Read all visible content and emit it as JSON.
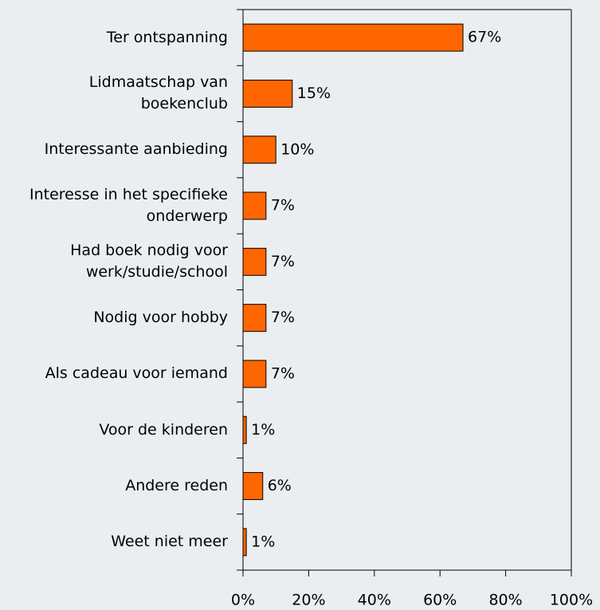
{
  "chart_data": {
    "type": "hbar",
    "categories": [
      "Ter ontspanning",
      "Lidmaatschap van boekenclub",
      "Interessante aanbieding",
      "Interesse in het specifieke onderwerp",
      "Had boek nodig voor werk/studie/school",
      "Nodig voor hobby",
      "Als cadeau voor iemand",
      "Voor de kinderen",
      "Andere reden",
      "Weet niet meer"
    ],
    "values": [
      67,
      15,
      10,
      7,
      7,
      7,
      7,
      1,
      6,
      1
    ],
    "value_labels": [
      "67%",
      "15%",
      "10%",
      "7%",
      "7%",
      "7%",
      "7%",
      "1%",
      "6%",
      "1%"
    ],
    "color": "#ff6600",
    "xlim": [
      0,
      100
    ],
    "xticks": [
      {
        "value": 0,
        "label": "0%"
      },
      {
        "value": 20,
        "label": "20%"
      },
      {
        "value": 40,
        "label": "40%"
      },
      {
        "value": 60,
        "label": "60%"
      },
      {
        "value": 80,
        "label": "80%"
      },
      {
        "value": 100,
        "label": "100%"
      }
    ]
  }
}
